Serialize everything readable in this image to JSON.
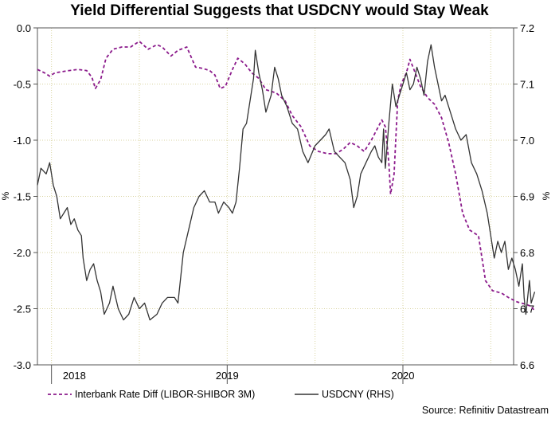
{
  "chart_data": {
    "type": "line",
    "title": "Yield Differential Suggests that USDCNY would Stay Weak",
    "left_axis": {
      "label": "%",
      "range": [
        -3.0,
        0.0
      ],
      "ticks": [
        {
          "value": 0.0,
          "label": "0.0"
        },
        {
          "value": -0.5,
          "label": "-0.5"
        },
        {
          "value": -1.0,
          "label": "-1.0"
        },
        {
          "value": -1.5,
          "label": "-1.5"
        },
        {
          "value": -2.0,
          "label": "-2.0"
        },
        {
          "value": -2.5,
          "label": "-2.5"
        },
        {
          "value": -3.0,
          "label": "-3.0"
        }
      ]
    },
    "right_axis": {
      "label": "%",
      "range": [
        6.6,
        7.2
      ],
      "ticks": [
        {
          "value": 7.2,
          "label": "7.2"
        },
        {
          "value": 7.1,
          "label": "7.1"
        },
        {
          "value": 7.0,
          "label": "7.0"
        },
        {
          "value": 6.9,
          "label": "6.9"
        },
        {
          "value": 6.8,
          "label": "6.8"
        },
        {
          "value": 6.7,
          "label": "6.7"
        },
        {
          "value": 6.6,
          "label": "6.6"
        }
      ]
    },
    "x_axis": {
      "range": [
        2017.92,
        2020.63
      ],
      "year_boundaries": [
        2018.0,
        2019.0,
        2020.0
      ],
      "year_labels": [
        {
          "label": "2018",
          "center": 2018.13
        },
        {
          "label": "2019",
          "center": 2019.0
        },
        {
          "label": "2020",
          "center": 2020.0
        }
      ],
      "gridlines": [
        2018.0,
        2018.5,
        2019.0,
        2019.5,
        2020.0,
        2020.5
      ]
    },
    "grid": true,
    "series": [
      {
        "name": "Interbank Rate Diff (LIBOR-SHIBOR 3M)",
        "axis": "left",
        "color": "#8b1a8b",
        "style": "dashed",
        "points": [
          [
            2017.92,
            -0.37
          ],
          [
            2017.96,
            -0.4
          ],
          [
            2017.99,
            -0.43
          ],
          [
            2018.02,
            -0.4
          ],
          [
            2018.06,
            -0.39
          ],
          [
            2018.1,
            -0.38
          ],
          [
            2018.15,
            -0.37
          ],
          [
            2018.2,
            -0.38
          ],
          [
            2018.23,
            -0.44
          ],
          [
            2018.25,
            -0.54
          ],
          [
            2018.28,
            -0.46
          ],
          [
            2018.31,
            -0.27
          ],
          [
            2018.35,
            -0.19
          ],
          [
            2018.4,
            -0.17
          ],
          [
            2018.45,
            -0.17
          ],
          [
            2018.5,
            -0.12
          ],
          [
            2018.55,
            -0.19
          ],
          [
            2018.6,
            -0.15
          ],
          [
            2018.63,
            -0.17
          ],
          [
            2018.68,
            -0.25
          ],
          [
            2018.72,
            -0.2
          ],
          [
            2018.77,
            -0.17
          ],
          [
            2018.82,
            -0.35
          ],
          [
            2018.86,
            -0.36
          ],
          [
            2018.9,
            -0.38
          ],
          [
            2018.93,
            -0.42
          ],
          [
            2018.96,
            -0.54
          ],
          [
            2018.99,
            -0.52
          ],
          [
            2019.03,
            -0.37
          ],
          [
            2019.06,
            -0.27
          ],
          [
            2019.1,
            -0.32
          ],
          [
            2019.14,
            -0.4
          ],
          [
            2019.18,
            -0.45
          ],
          [
            2019.22,
            -0.55
          ],
          [
            2019.28,
            -0.58
          ],
          [
            2019.33,
            -0.65
          ],
          [
            2019.37,
            -0.78
          ],
          [
            2019.42,
            -0.88
          ],
          [
            2019.47,
            -1.05
          ],
          [
            2019.52,
            -1.1
          ],
          [
            2019.57,
            -1.12
          ],
          [
            2019.62,
            -1.12
          ],
          [
            2019.66,
            -1.08
          ],
          [
            2019.7,
            -1.02
          ],
          [
            2019.74,
            -1.05
          ],
          [
            2019.78,
            -1.1
          ],
          [
            2019.82,
            -1.0
          ],
          [
            2019.86,
            -0.88
          ],
          [
            2019.88,
            -0.82
          ],
          [
            2019.9,
            -0.88
          ],
          [
            2019.92,
            -1.2
          ],
          [
            2019.93,
            -1.48
          ],
          [
            2019.95,
            -1.3
          ],
          [
            2019.97,
            -0.65
          ],
          [
            2019.99,
            -0.5
          ],
          [
            2020.02,
            -0.4
          ],
          [
            2020.04,
            -0.28
          ],
          [
            2020.07,
            -0.4
          ],
          [
            2020.1,
            -0.52
          ],
          [
            2020.14,
            -0.62
          ],
          [
            2020.18,
            -0.68
          ],
          [
            2020.22,
            -0.8
          ],
          [
            2020.26,
            -1.02
          ],
          [
            2020.3,
            -1.3
          ],
          [
            2020.34,
            -1.65
          ],
          [
            2020.38,
            -1.8
          ],
          [
            2020.43,
            -1.85
          ],
          [
            2020.47,
            -2.25
          ],
          [
            2020.51,
            -2.34
          ],
          [
            2020.56,
            -2.36
          ],
          [
            2020.6,
            -2.4
          ],
          [
            2020.65,
            -2.44
          ],
          [
            2020.7,
            -2.46
          ],
          [
            2020.73,
            -2.48
          ],
          [
            2020.75,
            -2.52
          ]
        ]
      },
      {
        "name": "USDCNY (RHS)",
        "axis": "right",
        "color": "#333333",
        "style": "solid",
        "points": [
          [
            2017.92,
            6.92
          ],
          [
            2017.94,
            6.95
          ],
          [
            2017.97,
            6.94
          ],
          [
            2017.99,
            6.96
          ],
          [
            2018.01,
            6.92
          ],
          [
            2018.03,
            6.9
          ],
          [
            2018.05,
            6.86
          ],
          [
            2018.07,
            6.87
          ],
          [
            2018.09,
            6.88
          ],
          [
            2018.11,
            6.85
          ],
          [
            2018.13,
            6.86
          ],
          [
            2018.15,
            6.84
          ],
          [
            2018.17,
            6.83
          ],
          [
            2018.18,
            6.79
          ],
          [
            2018.2,
            6.75
          ],
          [
            2018.22,
            6.77
          ],
          [
            2018.24,
            6.78
          ],
          [
            2018.26,
            6.75
          ],
          [
            2018.28,
            6.73
          ],
          [
            2018.3,
            6.69
          ],
          [
            2018.33,
            6.71
          ],
          [
            2018.35,
            6.74
          ],
          [
            2018.38,
            6.7
          ],
          [
            2018.41,
            6.68
          ],
          [
            2018.44,
            6.69
          ],
          [
            2018.47,
            6.72
          ],
          [
            2018.5,
            6.7
          ],
          [
            2018.53,
            6.71
          ],
          [
            2018.56,
            6.68
          ],
          [
            2018.6,
            6.69
          ],
          [
            2018.63,
            6.71
          ],
          [
            2018.66,
            6.72
          ],
          [
            2018.7,
            6.72
          ],
          [
            2018.72,
            6.71
          ],
          [
            2018.75,
            6.8
          ],
          [
            2018.78,
            6.84
          ],
          [
            2018.81,
            6.88
          ],
          [
            2018.84,
            6.9
          ],
          [
            2018.87,
            6.91
          ],
          [
            2018.9,
            6.89
          ],
          [
            2018.93,
            6.89
          ],
          [
            2018.95,
            6.87
          ],
          [
            2018.98,
            6.89
          ],
          [
            2019.01,
            6.88
          ],
          [
            2019.03,
            6.87
          ],
          [
            2019.05,
            6.89
          ],
          [
            2019.07,
            6.95
          ],
          [
            2019.09,
            7.02
          ],
          [
            2019.11,
            7.03
          ],
          [
            2019.13,
            7.07
          ],
          [
            2019.15,
            7.11
          ],
          [
            2019.16,
            7.16
          ],
          [
            2019.18,
            7.12
          ],
          [
            2019.2,
            7.09
          ],
          [
            2019.22,
            7.05
          ],
          [
            2019.25,
            7.08
          ],
          [
            2019.27,
            7.13
          ],
          [
            2019.29,
            7.11
          ],
          [
            2019.31,
            7.08
          ],
          [
            2019.34,
            7.06
          ],
          [
            2019.37,
            7.03
          ],
          [
            2019.4,
            7.02
          ],
          [
            2019.43,
            6.98
          ],
          [
            2019.46,
            6.96
          ],
          [
            2019.5,
            6.99
          ],
          [
            2019.53,
            7.0
          ],
          [
            2019.56,
            7.01
          ],
          [
            2019.58,
            7.02
          ],
          [
            2019.61,
            6.98
          ],
          [
            2019.64,
            6.97
          ],
          [
            2019.67,
            6.96
          ],
          [
            2019.7,
            6.93
          ],
          [
            2019.72,
            6.88
          ],
          [
            2019.74,
            6.9
          ],
          [
            2019.76,
            6.94
          ],
          [
            2019.79,
            6.96
          ],
          [
            2019.82,
            6.98
          ],
          [
            2019.84,
            6.99
          ],
          [
            2019.86,
            6.97
          ],
          [
            2019.88,
            6.96
          ],
          [
            2019.89,
            7.02
          ],
          [
            2019.9,
            6.95
          ],
          [
            2019.92,
            7.03
          ],
          [
            2019.94,
            7.1
          ],
          [
            2019.96,
            7.06
          ],
          [
            2019.98,
            7.08
          ],
          [
            2020.0,
            7.1
          ],
          [
            2020.02,
            7.12
          ],
          [
            2020.04,
            7.09
          ],
          [
            2020.06,
            7.1
          ],
          [
            2020.08,
            7.13
          ],
          [
            2020.1,
            7.11
          ],
          [
            2020.12,
            7.08
          ],
          [
            2020.14,
            7.14
          ],
          [
            2020.16,
            7.17
          ],
          [
            2020.18,
            7.13
          ],
          [
            2020.2,
            7.1
          ],
          [
            2020.22,
            7.07
          ],
          [
            2020.24,
            7.08
          ],
          [
            2020.27,
            7.05
          ],
          [
            2020.3,
            7.02
          ],
          [
            2020.33,
            7.0
          ],
          [
            2020.36,
            7.01
          ],
          [
            2020.39,
            6.96
          ],
          [
            2020.42,
            6.94
          ],
          [
            2020.45,
            6.91
          ],
          [
            2020.48,
            6.87
          ],
          [
            2020.5,
            6.83
          ],
          [
            2020.52,
            6.79
          ],
          [
            2020.54,
            6.82
          ],
          [
            2020.56,
            6.8
          ],
          [
            2020.58,
            6.82
          ],
          [
            2020.6,
            6.77
          ],
          [
            2020.62,
            6.79
          ],
          [
            2020.64,
            6.77
          ],
          [
            2020.66,
            6.74
          ],
          [
            2020.68,
            6.78
          ],
          [
            2020.69,
            6.72
          ],
          [
            2020.7,
            6.69
          ],
          [
            2020.72,
            6.75
          ],
          [
            2020.73,
            6.71
          ],
          [
            2020.75,
            6.73
          ]
        ]
      }
    ],
    "legend": {
      "position": "bottom",
      "items": [
        {
          "label": "Interbank Rate Diff (LIBOR-SHIBOR 3M)",
          "color": "#8b1a8b",
          "style": "dashed"
        },
        {
          "label": "USDCNY (RHS)",
          "color": "#333333",
          "style": "solid"
        }
      ]
    },
    "source": "Source: Refinitiv Datastream"
  }
}
